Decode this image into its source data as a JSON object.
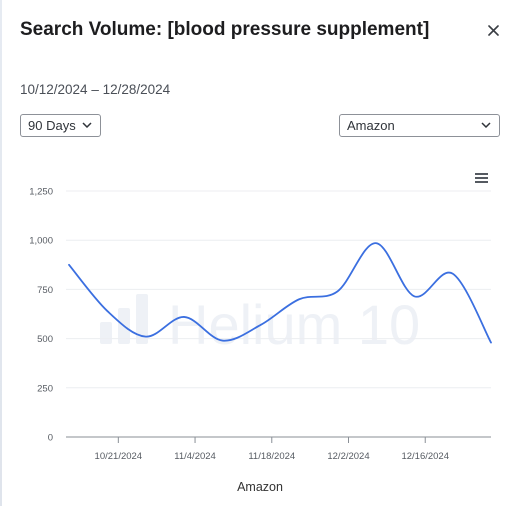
{
  "header": {
    "title": "Search Volume: [blood pressure supplement]",
    "date_range": "10/12/2024 – 12/28/2024",
    "close_icon": "close-icon"
  },
  "controls": {
    "range": {
      "selected": "90 Days"
    },
    "source": {
      "selected": "Amazon"
    }
  },
  "watermark": "Helium 10",
  "colors": {
    "line": "#3b6fe0",
    "grid": "#eceef1",
    "watermark": "#eef1f6"
  },
  "chart_data": {
    "type": "line",
    "title": "Search Volume: [blood pressure supplement]",
    "xlabel": "Amazon",
    "ylabel": "",
    "legend": "none",
    "grid": true,
    "ylim": [
      0,
      1250
    ],
    "yticks": [
      0,
      250,
      500,
      750,
      1000,
      1250
    ],
    "ytick_labels": [
      "0",
      "250",
      "500",
      "750",
      "1,000",
      "1,250"
    ],
    "xlim": [
      "2024-10-12",
      "2024-12-28"
    ],
    "xticks": [
      "2024-10-21",
      "2024-11-04",
      "2024-11-18",
      "2024-12-02",
      "2024-12-16"
    ],
    "xtick_labels": [
      "10/21/2024",
      "11/4/2024",
      "11/18/2024",
      "12/2/2024",
      "12/16/2024"
    ],
    "series": [
      {
        "name": "Amazon",
        "x": [
          "2024-10-12",
          "2024-10-19",
          "2024-10-26",
          "2024-11-02",
          "2024-11-09",
          "2024-11-16",
          "2024-11-23",
          "2024-11-30",
          "2024-12-07",
          "2024-12-14",
          "2024-12-21",
          "2024-12-28"
        ],
        "values": [
          875,
          640,
          510,
          610,
          490,
          570,
          700,
          740,
          985,
          715,
          830,
          480
        ]
      }
    ]
  }
}
